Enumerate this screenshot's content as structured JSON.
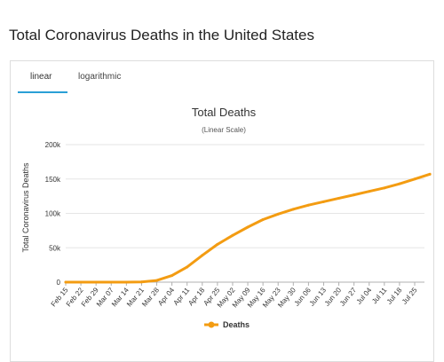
{
  "page": {
    "title": "Total Coronavirus Deaths in the United States"
  },
  "tabs": [
    {
      "label": "linear",
      "active": true
    },
    {
      "label": "logarithmic",
      "active": false
    }
  ],
  "colors": {
    "series": "#f39c12",
    "tab_accent": "#2a9fd6",
    "grid": "#e6e6e6"
  },
  "chart_data": {
    "type": "line",
    "title": "Total Deaths",
    "subtitle": "(Linear Scale)",
    "xlabel": "",
    "ylabel": "Total Coronavirus Deaths",
    "ylim": [
      0,
      200000
    ],
    "yticks": [
      0,
      50000,
      100000,
      150000,
      200000
    ],
    "ytick_labels": [
      "0",
      "50k",
      "100k",
      "150k",
      "200k"
    ],
    "xtick_labels": [
      "Feb 15",
      "Feb 22",
      "Feb 29",
      "Mar 07",
      "Mar 14",
      "Mar 21",
      "Mar 28",
      "Apr 04",
      "Apr 11",
      "Apr 18",
      "Apr 25",
      "May 02",
      "May 09",
      "May 16",
      "May 23",
      "May 30",
      "Jun 06",
      "Jun 13",
      "Jun 20",
      "Jun 27",
      "Jul 04",
      "Jul 11",
      "Jul 18",
      "Jul 25"
    ],
    "grid": true,
    "legend_position": "bottom-center",
    "series": [
      {
        "name": "Deaths",
        "x": [
          "Feb 15",
          "Feb 22",
          "Feb 29",
          "Mar 07",
          "Mar 14",
          "Mar 21",
          "Mar 28",
          "Apr 04",
          "Apr 11",
          "Apr 18",
          "Apr 25",
          "May 02",
          "May 09",
          "May 16",
          "May 23",
          "May 30",
          "Jun 06",
          "Jun 13",
          "Jun 20",
          "Jun 27",
          "Jul 04",
          "Jul 11",
          "Jul 18",
          "Jul 25",
          "Jul 31"
        ],
        "values": [
          0,
          0,
          1,
          19,
          57,
          400,
          2500,
          9500,
          22000,
          39000,
          55000,
          68000,
          80000,
          91000,
          99000,
          106000,
          112000,
          117000,
          122000,
          127000,
          132000,
          137000,
          143000,
          150000,
          157000
        ]
      }
    ]
  }
}
